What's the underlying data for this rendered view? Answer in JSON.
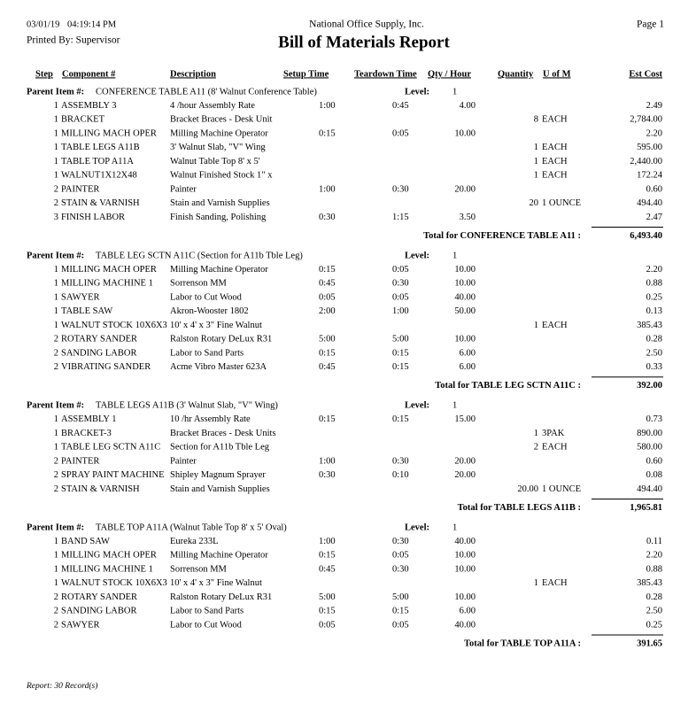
{
  "header": {
    "date": "03/01/19",
    "time": "04:19:14 PM",
    "company": "National Office Supply, Inc.",
    "page": "Page 1",
    "printed_by": "Printed By: Supervisor",
    "title": "Bill of Materials Report"
  },
  "columns": [
    "Step",
    "Component #",
    "Description",
    "Setup Time",
    "Teardown Time",
    "Qty / Hour",
    "Quantity",
    "U of M",
    "Est Cost"
  ],
  "labels": {
    "parent": "Parent Item #:",
    "level": "Level:"
  },
  "groups": [
    {
      "parent": "CONFERENCE TABLE A11 (8' Walnut Conference Table)",
      "level": "1",
      "rows": [
        [
          "1",
          "ASSEMBLY 3",
          "4 /hour Assembly Rate",
          "1:00",
          "0:45",
          "4.00",
          null,
          null,
          "2.49"
        ],
        [
          "1",
          "BRACKET",
          "Bracket Braces - Desk Unit",
          null,
          null,
          null,
          "8",
          "EACH",
          "2,784.00"
        ],
        [
          "1",
          "MILLING MACH OPER",
          "Milling Machine Operator",
          "0:15",
          "0:05",
          "10.00",
          null,
          null,
          "2.20"
        ],
        [
          "1",
          "TABLE LEGS A11B",
          "3' Walnut Slab, \"V\"  Wing",
          null,
          null,
          null,
          "1",
          "EACH",
          "595.00"
        ],
        [
          "1",
          "TABLE TOP A11A",
          "Walnut Table Top 8' x 5'",
          null,
          null,
          null,
          "1",
          "EACH",
          "2,440.00"
        ],
        [
          "1",
          "WALNUT1X12X48",
          "Walnut Finished Stock 1\" x",
          null,
          null,
          null,
          "1",
          "EACH",
          "172.24"
        ],
        [
          "2",
          "PAINTER",
          "Painter",
          "1:00",
          "0:30",
          "20.00",
          null,
          null,
          "0.60"
        ],
        [
          "2",
          "STAIN & VARNISH",
          "Stain and Varnish Supplies",
          null,
          null,
          null,
          "20",
          "1 OUNCE",
          "494.40"
        ],
        [
          "3",
          "FINISH LABOR",
          "Finish Sanding, Polishing",
          "0:30",
          "1:15",
          "3.50",
          null,
          null,
          "2.47"
        ]
      ],
      "total_label": "Total for CONFERENCE TABLE A11  :",
      "total": "6,493.40"
    },
    {
      "parent": "TABLE LEG SCTN A11C (Section for A11b Tble Leg)",
      "level": "1",
      "rows": [
        [
          "1",
          "MILLING MACH OPER",
          "Milling Machine Operator",
          "0:15",
          "0:05",
          "10.00",
          null,
          null,
          "2.20"
        ],
        [
          "1",
          "MILLING MACHINE 1",
          "Sorrenson MM",
          "0:45",
          "0:30",
          "10.00",
          null,
          null,
          "0.88"
        ],
        [
          "1",
          "SAWYER",
          "Labor to Cut Wood",
          "0:05",
          "0:05",
          "40.00",
          null,
          null,
          "0.25"
        ],
        [
          "1",
          "TABLE SAW",
          "Akron-Wooster 1802",
          "2:00",
          "1:00",
          "50.00",
          null,
          null,
          "0.13"
        ],
        [
          "1",
          "WALNUT STOCK 10X6X3",
          "10' x 4' x 3\" Fine Walnut",
          null,
          null,
          null,
          "1",
          "EACH",
          "385.43"
        ],
        [
          "2",
          "ROTARY SANDER",
          "Ralston Rotary DeLux R31",
          "5:00",
          "5:00",
          "10.00",
          null,
          null,
          "0.28"
        ],
        [
          "2",
          "SANDING LABOR",
          "Labor to Sand Parts",
          "0:15",
          "0:15",
          "6.00",
          null,
          null,
          "2.50"
        ],
        [
          "2",
          "VIBRATING SANDER",
          "Acme Vibro Master 623A",
          "0:45",
          "0:15",
          "6.00",
          null,
          null,
          "0.33"
        ]
      ],
      "total_label": "Total for TABLE LEG SCTN A11C  :",
      "total": "392.00"
    },
    {
      "parent": "TABLE LEGS A11B (3' Walnut Slab, \"V\"  Wing)",
      "level": "1",
      "rows": [
        [
          "1",
          "ASSEMBLY 1",
          "10 /hr Assembly Rate",
          "0:15",
          "0:15",
          "15.00",
          null,
          null,
          "0.73"
        ],
        [
          "1",
          "BRACKET-3",
          "Bracket Braces - Desk Units",
          null,
          null,
          null,
          "1",
          "3PAK",
          "890.00"
        ],
        [
          "1",
          "TABLE LEG SCTN A11C",
          "Section for A11b Tble Leg",
          null,
          null,
          null,
          "2",
          "EACH",
          "580.00"
        ],
        [
          "2",
          "PAINTER",
          "Painter",
          "1:00",
          "0:30",
          "20.00",
          null,
          null,
          "0.60"
        ],
        [
          "2",
          "SPRAY PAINT MACHINE",
          "Shipley Magnum Sprayer",
          "0:30",
          "0:10",
          "20.00",
          null,
          null,
          "0.08"
        ],
        [
          "2",
          "STAIN & VARNISH",
          "Stain and Varnish Supplies",
          null,
          null,
          null,
          "20.00",
          "1 OUNCE",
          "494.40"
        ]
      ],
      "total_label": "Total for TABLE LEGS A11B  :",
      "total": "1,965.81"
    },
    {
      "parent": "TABLE TOP A11A (Walnut Table Top 8' x 5' Oval)",
      "level": "1",
      "rows": [
        [
          "1",
          "BAND SAW",
          "Eureka 233L",
          "1:00",
          "0:30",
          "40.00",
          null,
          null,
          "0.11"
        ],
        [
          "1",
          "MILLING MACH OPER",
          "Milling Machine Operator",
          "0:15",
          "0:05",
          "10.00",
          null,
          null,
          "2.20"
        ],
        [
          "1",
          "MILLING MACHINE 1",
          "Sorrenson MM",
          "0:45",
          "0:30",
          "10.00",
          null,
          null,
          "0.88"
        ],
        [
          "1",
          "WALNUT STOCK 10X6X3",
          "10' x 4' x 3\" Fine Walnut",
          null,
          null,
          null,
          "1",
          "EACH",
          "385.43"
        ],
        [
          "2",
          "ROTARY SANDER",
          "Ralston Rotary DeLux R31",
          "5:00",
          "5:00",
          "10.00",
          null,
          null,
          "0.28"
        ],
        [
          "2",
          "SANDING LABOR",
          "Labor to Sand Parts",
          "0:15",
          "0:15",
          "6.00",
          null,
          null,
          "2.50"
        ],
        [
          "2",
          "SAWYER",
          "Labor to Cut Wood",
          "0:05",
          "0:05",
          "40.00",
          null,
          null,
          "0.25"
        ]
      ],
      "total_label": "Total for TABLE TOP A11A  :",
      "total": "391.65"
    }
  ],
  "footer": "Report: 30 Record(s)"
}
